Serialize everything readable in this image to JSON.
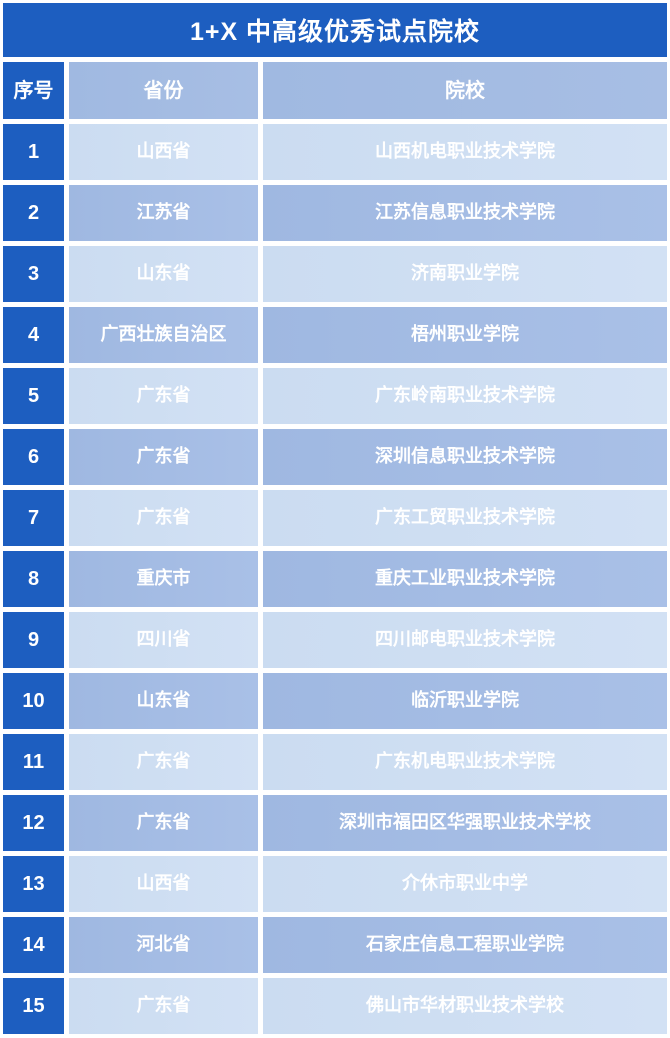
{
  "table": {
    "title": "1+X 中高级优秀试点院校",
    "headers": {
      "index": "序号",
      "province": "省份",
      "institution": "院校"
    },
    "rows": [
      {
        "index": "1",
        "province": "山西省",
        "institution": "山西机电职业技术学院"
      },
      {
        "index": "2",
        "province": "江苏省",
        "institution": "江苏信息职业技术学院"
      },
      {
        "index": "3",
        "province": "山东省",
        "institution": "济南职业学院"
      },
      {
        "index": "4",
        "province": "广西壮族自治区",
        "institution": "梧州职业学院"
      },
      {
        "index": "5",
        "province": "广东省",
        "institution": "广东岭南职业技术学院"
      },
      {
        "index": "6",
        "province": "广东省",
        "institution": "深圳信息职业技术学院"
      },
      {
        "index": "7",
        "province": "广东省",
        "institution": "广东工贸职业技术学院"
      },
      {
        "index": "8",
        "province": "重庆市",
        "institution": "重庆工业职业技术学院"
      },
      {
        "index": "9",
        "province": "四川省",
        "institution": "四川邮电职业技术学院"
      },
      {
        "index": "10",
        "province": "山东省",
        "institution": "临沂职业学院"
      },
      {
        "index": "11",
        "province": "广东省",
        "institution": "广东机电职业技术学院"
      },
      {
        "index": "12",
        "province": "广东省",
        "institution": "深圳市福田区华强职业技术学校"
      },
      {
        "index": "13",
        "province": "山西省",
        "institution": "介休市职业中学"
      },
      {
        "index": "14",
        "province": "河北省",
        "institution": "石家庄信息工程职业学院"
      },
      {
        "index": "15",
        "province": "广东省",
        "institution": "佛山市华材职业技术学校"
      }
    ],
    "colors": {
      "primary_blue": "#1d5ec0",
      "header_blue": "#a3bbe2",
      "row_odd_blue": "#cedff2",
      "row_even_blue": "#a3bce4",
      "gutter_white": "#ffffff",
      "text_white": "#ffffff"
    }
  }
}
